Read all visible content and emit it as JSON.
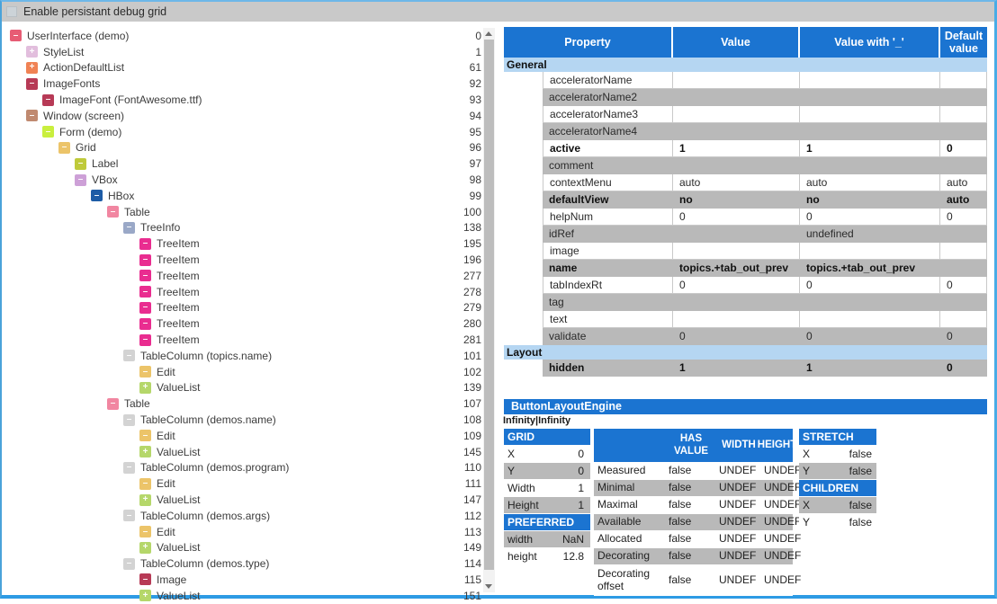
{
  "colors": {
    "header_blue": "#1b74d1",
    "section_blue": "#b5d6f2",
    "row_gray": "#b9b9b9",
    "bar_gray": "#c9c9c9"
  },
  "topbar": {
    "checkbox_label": "Enable persistant debug grid",
    "checked": false
  },
  "tree": {
    "items": [
      {
        "label": "UserInterface (demo)",
        "num": "0",
        "level": 0,
        "expand": "minus",
        "color": "#e75c74"
      },
      {
        "label": "StyleList",
        "num": "1",
        "level": 1,
        "expand": "plus",
        "color": "#e2bedd"
      },
      {
        "label": "ActionDefaultList",
        "num": "61",
        "level": 1,
        "expand": "plus",
        "color": "#f08254"
      },
      {
        "label": "ImageFonts",
        "num": "92",
        "level": 1,
        "expand": "minus",
        "color": "#b73a56"
      },
      {
        "label": "ImageFont (FontAwesome.ttf)",
        "num": "93",
        "level": 2,
        "expand": "minus",
        "color": "#b73a56"
      },
      {
        "label": "Window (screen)",
        "num": "94",
        "level": 1,
        "expand": "minus",
        "color": "#c08a70"
      },
      {
        "label": "Form (demo)",
        "num": "95",
        "level": 2,
        "expand": "minus",
        "color": "#c9ef3e"
      },
      {
        "label": "Grid",
        "num": "96",
        "level": 3,
        "expand": "minus",
        "color": "#ecc469"
      },
      {
        "label": "Label",
        "num": "97",
        "level": 4,
        "expand": "minus",
        "color": "#bfca3a"
      },
      {
        "label": "VBox",
        "num": "98",
        "level": 4,
        "expand": "minus",
        "color": "#cda0d7"
      },
      {
        "label": "HBox",
        "num": "99",
        "level": 5,
        "expand": "minus",
        "color": "#1d5ca6"
      },
      {
        "label": "Table",
        "num": "100",
        "level": 6,
        "expand": "minus",
        "color": "#f186a1"
      },
      {
        "label": "TreeInfo",
        "num": "138",
        "level": 7,
        "expand": "minus",
        "color": "#9aa8c7"
      },
      {
        "label": "TreeItem",
        "num": "195",
        "level": 8,
        "expand": "minus",
        "color": "#e92d90"
      },
      {
        "label": "TreeItem",
        "num": "196",
        "level": 8,
        "expand": "minus",
        "color": "#e92d90"
      },
      {
        "label": "TreeItem",
        "num": "277",
        "level": 8,
        "expand": "minus",
        "color": "#e92d90"
      },
      {
        "label": "TreeItem",
        "num": "278",
        "level": 8,
        "expand": "minus",
        "color": "#e92d90"
      },
      {
        "label": "TreeItem",
        "num": "279",
        "level": 8,
        "expand": "minus",
        "color": "#e92d90"
      },
      {
        "label": "TreeItem",
        "num": "280",
        "level": 8,
        "expand": "minus",
        "color": "#e92d90"
      },
      {
        "label": "TreeItem",
        "num": "281",
        "level": 8,
        "expand": "minus",
        "color": "#e92d90"
      },
      {
        "label": "TableColumn (topics.name)",
        "num": "101",
        "level": 7,
        "expand": "minus",
        "color": "#d3d3d3"
      },
      {
        "label": "Edit",
        "num": "102",
        "level": 8,
        "expand": "minus",
        "color": "#ecc469"
      },
      {
        "label": "ValueList",
        "num": "139",
        "level": 8,
        "expand": "plus",
        "color": "#b5d76a"
      },
      {
        "label": "Table",
        "num": "107",
        "level": 6,
        "expand": "minus",
        "color": "#f186a1"
      },
      {
        "label": "TableColumn (demos.name)",
        "num": "108",
        "level": 7,
        "expand": "minus",
        "color": "#d3d3d3"
      },
      {
        "label": "Edit",
        "num": "109",
        "level": 8,
        "expand": "minus",
        "color": "#ecc469"
      },
      {
        "label": "ValueList",
        "num": "145",
        "level": 8,
        "expand": "plus",
        "color": "#b5d76a"
      },
      {
        "label": "TableColumn (demos.program)",
        "num": "110",
        "level": 7,
        "expand": "minus",
        "color": "#d3d3d3"
      },
      {
        "label": "Edit",
        "num": "111",
        "level": 8,
        "expand": "minus",
        "color": "#ecc469"
      },
      {
        "label": "ValueList",
        "num": "147",
        "level": 8,
        "expand": "plus",
        "color": "#b5d76a"
      },
      {
        "label": "TableColumn (demos.args)",
        "num": "112",
        "level": 7,
        "expand": "minus",
        "color": "#d3d3d3"
      },
      {
        "label": "Edit",
        "num": "113",
        "level": 8,
        "expand": "minus",
        "color": "#ecc469"
      },
      {
        "label": "ValueList",
        "num": "149",
        "level": 8,
        "expand": "plus",
        "color": "#b5d76a"
      },
      {
        "label": "TableColumn (demos.type)",
        "num": "114",
        "level": 7,
        "expand": "minus",
        "color": "#d3d3d3"
      },
      {
        "label": "Image",
        "num": "115",
        "level": 8,
        "expand": "minus",
        "color": "#b73a56"
      },
      {
        "label": "ValueList",
        "num": "151",
        "level": 8,
        "expand": "plus",
        "color": "#b5d76a"
      }
    ]
  },
  "property_table": {
    "headers": [
      "Property",
      "Value",
      "Value with '_'",
      "Default value"
    ],
    "rows": [
      {
        "type": "section",
        "label": "General"
      },
      {
        "type": "prop",
        "name": "acceleratorName",
        "cells": [
          "",
          "",
          ""
        ],
        "shade": "white",
        "bold": false
      },
      {
        "type": "prop",
        "name": "acceleratorName2",
        "cells": [
          "",
          "",
          ""
        ],
        "shade": "gray",
        "bold": false
      },
      {
        "type": "prop",
        "name": "acceleratorName3",
        "cells": [
          "",
          "",
          ""
        ],
        "shade": "white",
        "bold": false
      },
      {
        "type": "prop",
        "name": "acceleratorName4",
        "cells": [
          "",
          "",
          ""
        ],
        "shade": "gray",
        "bold": false
      },
      {
        "type": "prop",
        "name": "active",
        "cells": [
          "1",
          "1",
          "0"
        ],
        "shade": "white",
        "bold": true
      },
      {
        "type": "prop",
        "name": "comment",
        "cells": [
          "",
          "",
          ""
        ],
        "shade": "gray",
        "bold": false
      },
      {
        "type": "prop",
        "name": "contextMenu",
        "cells": [
          "auto",
          "auto",
          "auto"
        ],
        "shade": "white",
        "bold": false
      },
      {
        "type": "prop",
        "name": "defaultView",
        "cells": [
          "no",
          "no",
          "auto"
        ],
        "shade": "gray",
        "bold": true
      },
      {
        "type": "prop",
        "name": "helpNum",
        "cells": [
          "0",
          "0",
          "0"
        ],
        "shade": "white",
        "bold": false
      },
      {
        "type": "prop",
        "name": "idRef",
        "cells": [
          "",
          "undefined",
          ""
        ],
        "shade": "gray",
        "bold": false
      },
      {
        "type": "prop",
        "name": "image",
        "cells": [
          "",
          "",
          ""
        ],
        "shade": "white",
        "bold": false
      },
      {
        "type": "prop",
        "name": "name",
        "cells": [
          "topics.+tab_out_prev",
          "topics.+tab_out_prev",
          ""
        ],
        "shade": "gray",
        "bold": true
      },
      {
        "type": "prop",
        "name": "tabIndexRt",
        "cells": [
          "0",
          "0",
          "0"
        ],
        "shade": "white",
        "bold": false
      },
      {
        "type": "prop",
        "name": "tag",
        "cells": [
          "",
          "",
          ""
        ],
        "shade": "gray",
        "bold": false
      },
      {
        "type": "prop",
        "name": "text",
        "cells": [
          "",
          "",
          ""
        ],
        "shade": "white",
        "bold": false
      },
      {
        "type": "prop",
        "name": "validate",
        "cells": [
          "0",
          "0",
          "0"
        ],
        "shade": "gray",
        "bold": false
      },
      {
        "type": "section",
        "label": "Layout"
      },
      {
        "type": "prop",
        "name": "hidden",
        "cells": [
          "1",
          "1",
          "0"
        ],
        "shade": "gray",
        "bold": true
      }
    ]
  },
  "layout_engine": {
    "title": "ButtonLayoutEngine",
    "size_info": "Infinity|Infinity",
    "grid_table": {
      "sections": [
        {
          "header": "GRID",
          "rows": [
            {
              "label": "X",
              "value": "0",
              "shade": "white"
            },
            {
              "label": "Y",
              "value": "0",
              "shade": "gray"
            },
            {
              "label": "Width",
              "value": "1",
              "shade": "white"
            },
            {
              "label": "Height",
              "value": "1",
              "shade": "gray"
            }
          ]
        },
        {
          "header": "PREFERRED",
          "rows": [
            {
              "label": "width",
              "value": "NaN",
              "shade": "gray"
            },
            {
              "label": "height",
              "value": "12.8",
              "shade": "white"
            }
          ]
        }
      ]
    },
    "measure_table": {
      "headers": [
        "",
        "HAS VALUE",
        "WIDTH",
        "HEIGHT"
      ],
      "rows": [
        {
          "label": "Measured",
          "cells": [
            "false",
            "UNDEF",
            "UNDEF"
          ],
          "shade": "white",
          "tall": false
        },
        {
          "label": "Minimal",
          "cells": [
            "false",
            "UNDEF",
            "UNDEF"
          ],
          "shade": "gray",
          "tall": false
        },
        {
          "label": "Maximal",
          "cells": [
            "false",
            "UNDEF",
            "UNDEF"
          ],
          "shade": "white",
          "tall": false
        },
        {
          "label": "Available",
          "cells": [
            "false",
            "UNDEF",
            "UNDEF"
          ],
          "shade": "gray",
          "tall": false
        },
        {
          "label": "Allocated",
          "cells": [
            "false",
            "UNDEF",
            "UNDEF"
          ],
          "shade": "white",
          "tall": false
        },
        {
          "label": "Decorating",
          "cells": [
            "false",
            "UNDEF",
            "UNDEF"
          ],
          "shade": "gray",
          "tall": false
        },
        {
          "label": "Decorating offset",
          "cells": [
            "false",
            "UNDEF",
            "UNDEF"
          ],
          "shade": "white",
          "tall": true
        }
      ]
    },
    "stretch_table": {
      "sections": [
        {
          "header": "STRETCH",
          "rows": [
            {
              "label": "X",
              "value": "false",
              "shade": "white"
            },
            {
              "label": "Y",
              "value": "false",
              "shade": "gray"
            }
          ]
        },
        {
          "header": "CHILDREN",
          "rows": [
            {
              "label": "X",
              "value": "false",
              "shade": "gray"
            },
            {
              "label": "Y",
              "value": "false",
              "shade": "white"
            }
          ]
        }
      ]
    }
  }
}
